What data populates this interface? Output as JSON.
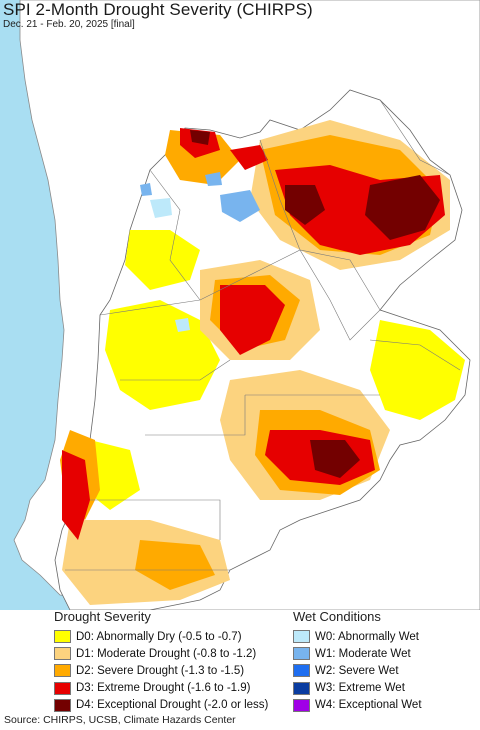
{
  "title": "SPI 2-Month Drought Severity (CHIRPS)",
  "subtitle": "Dec. 21 - Feb. 20, 2025 [final]",
  "legend_drought": {
    "heading": "Drought Severity",
    "items": [
      {
        "label": "D0: Abnormally Dry (-0.5 to -0.7)",
        "color": "#ffff00"
      },
      {
        "label": "D1: Moderate Drought (-0.8 to -1.2)",
        "color": "#fcd37f"
      },
      {
        "label": "D2: Severe Drought (-1.3 to -1.5)",
        "color": "#ffaa00"
      },
      {
        "label": "D3: Extreme Drought (-1.6 to -1.9)",
        "color": "#e60000"
      },
      {
        "label": "D4: Exceptional Drought (-2.0 or less)",
        "color": "#730000"
      }
    ]
  },
  "legend_wet": {
    "heading": "Wet Conditions",
    "items": [
      {
        "label": "W0: Abnormally Wet",
        "color": "#bde9fa"
      },
      {
        "label": "W1: Moderate Wet",
        "color": "#78b4ee"
      },
      {
        "label": "W2: Severe Wet",
        "color": "#1e6ef0"
      },
      {
        "label": "W3: Extreme Wet",
        "color": "#0a3ca0"
      },
      {
        "label": "W4: Exceptional Wet",
        "color": "#a000e6"
      }
    ]
  },
  "source": "Source: CHIRPS, UCSB, Climate Hazards Center",
  "colors": {
    "ocean": "#a9def2",
    "neighbor_land": "#ffffff",
    "border": "#777777"
  }
}
